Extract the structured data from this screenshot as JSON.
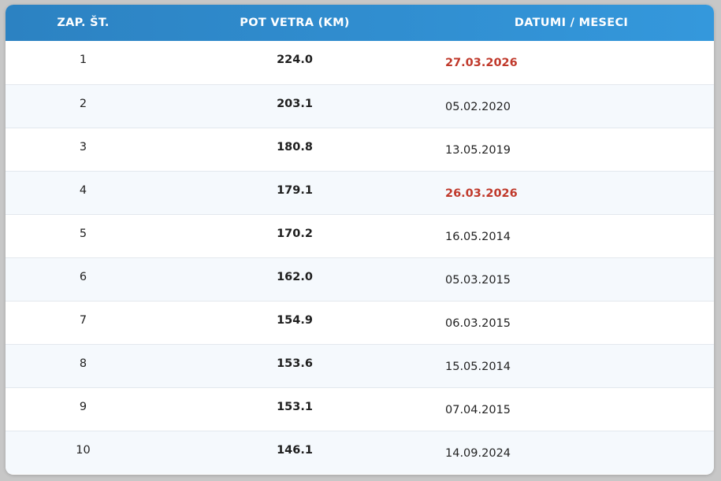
{
  "table": {
    "headers": [
      "ZAP. ŠT.",
      "POT VETRA (KM)",
      "DATUMI / MESECI"
    ],
    "rows": [
      {
        "rank": "1",
        "distance": "224.0",
        "date": "27.03.2026",
        "highlight": true
      },
      {
        "rank": "2",
        "distance": "203.1",
        "date": "05.02.2020",
        "highlight": false
      },
      {
        "rank": "3",
        "distance": "180.8",
        "date": "13.05.2019",
        "highlight": false
      },
      {
        "rank": "4",
        "distance": "179.1",
        "date": "26.03.2026",
        "highlight": true
      },
      {
        "rank": "5",
        "distance": "170.2",
        "date": "16.05.2014",
        "highlight": false
      },
      {
        "rank": "6",
        "distance": "162.0",
        "date": "05.03.2015",
        "highlight": false
      },
      {
        "rank": "7",
        "distance": "154.9",
        "date": "06.03.2015",
        "highlight": false
      },
      {
        "rank": "8",
        "distance": "153.6",
        "date": "15.05.2014",
        "highlight": false
      },
      {
        "rank": "9",
        "distance": "153.1",
        "date": "07.04.2015",
        "highlight": false
      },
      {
        "rank": "10",
        "distance": "146.1",
        "date": "14.09.2024",
        "highlight": false
      }
    ]
  },
  "colors": {
    "header_start": "#2c82c2",
    "header_end": "#3498dc",
    "highlight_text": "#c0392b",
    "row_alt": "#f5f9fd"
  }
}
